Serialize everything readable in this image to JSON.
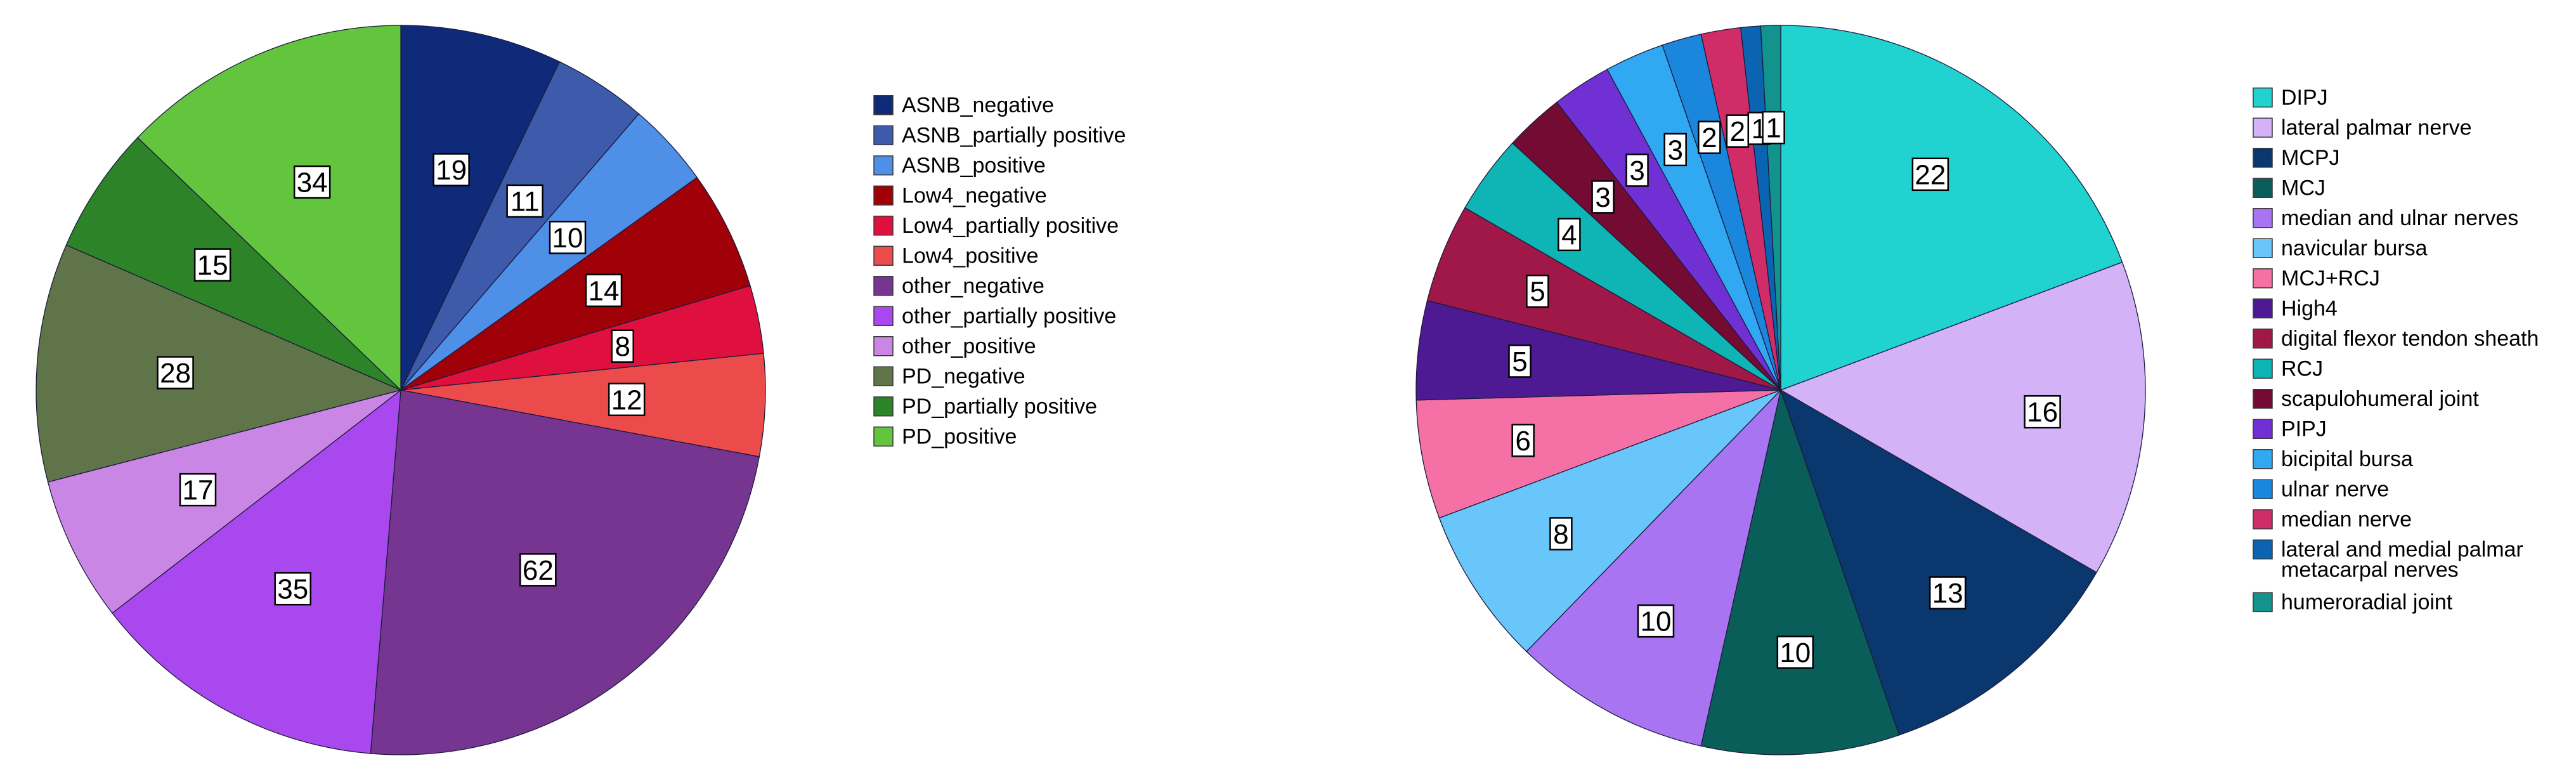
{
  "chart_data": [
    {
      "type": "pie",
      "slices": [
        {
          "label": "ASNB_negative",
          "value": 19,
          "color": "#0e2a78"
        },
        {
          "label": "ASNB_partially positive",
          "value": 11,
          "color": "#3d5aab"
        },
        {
          "label": "ASNB_positive",
          "value": 10,
          "color": "#4e8fe8"
        },
        {
          "label": "Low4_negative",
          "value": 14,
          "color": "#a00008"
        },
        {
          "label": "Low4_partially positive",
          "value": 8,
          "color": "#e0103e"
        },
        {
          "label": "Low4_positive",
          "value": 12,
          "color": "#ec4b4b"
        },
        {
          "label": "other_negative",
          "value": 62,
          "color": "#763590"
        },
        {
          "label": "other_partially positive",
          "value": 35,
          "color": "#a948ee"
        },
        {
          "label": "other_positive",
          "value": 17,
          "color": "#c986e5"
        },
        {
          "label": "PD_negative",
          "value": 28,
          "color": "#5f7448"
        },
        {
          "label": "PD_partially positive",
          "value": 15,
          "color": "#2d8328"
        },
        {
          "label": "PD_positive",
          "value": 34,
          "color": "#63c43e"
        }
      ]
    },
    {
      "type": "pie",
      "slices": [
        {
          "label": "DIPJ",
          "value": 22,
          "color": "#20d2d0"
        },
        {
          "label": "lateral palmar nerve",
          "value": 16,
          "color": "#d3b2f8"
        },
        {
          "label": "MCPJ",
          "value": 13,
          "color": "#0a376e"
        },
        {
          "label": "MCJ",
          "value": 10,
          "color": "#0a5e5a"
        },
        {
          "label": "median and ulnar nerves",
          "value": 10,
          "color": "#a974f2"
        },
        {
          "label": "navicular bursa",
          "value": 8,
          "color": "#69c6fb"
        },
        {
          "label": "MCJ+RCJ",
          "value": 6,
          "color": "#f470a5"
        },
        {
          "label": "High4",
          "value": 5,
          "color": "#4d1a94"
        },
        {
          "label": "digital flexor tendon sheath",
          "value": 5,
          "color": "#a01848"
        },
        {
          "label": "RCJ",
          "value": 4,
          "color": "#0eb5b4"
        },
        {
          "label": "scapulohumeral joint",
          "value": 3,
          "color": "#730b32"
        },
        {
          "label": "PIPJ",
          "value": 3,
          "color": "#7130d4"
        },
        {
          "label": "bicipital bursa",
          "value": 3,
          "color": "#30a8f2"
        },
        {
          "label": "ulnar nerve",
          "value": 2,
          "color": "#1a86dc"
        },
        {
          "label": "median nerve",
          "value": 2,
          "color": "#d02c68"
        },
        {
          "label": "lateral and medial palmar metacarpal nerves",
          "value": 1,
          "color": "#0a64b2"
        },
        {
          "label": "humeroradial joint",
          "value": 1,
          "color": "#13938e"
        }
      ]
    }
  ]
}
